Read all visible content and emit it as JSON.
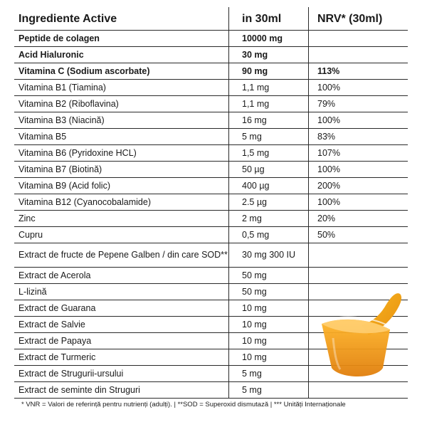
{
  "header": {
    "col_ingredient": "Ingrediente Active",
    "col_amount": "in 30ml",
    "col_nrv": "NRV* (30ml)"
  },
  "rows": [
    {
      "name": "Peptide de colagen",
      "amount": "10000 mg",
      "nrv": "",
      "bold": true
    },
    {
      "name": "Acid Hialuronic",
      "amount": "30 mg",
      "nrv": "",
      "bold": true
    },
    {
      "name": "Vitamina C (Sodium ascorbate)",
      "amount": "90 mg",
      "nrv": "113%",
      "bold": true
    },
    {
      "name": "Vitamina B1 (Tiamina)",
      "amount": "1,1 mg",
      "nrv": "100%"
    },
    {
      "name": "Vitamina B2 (Riboflavina)",
      "amount": "1,1 mg",
      "nrv": "79%"
    },
    {
      "name": "Vitamina B3 (Niacină)",
      "amount": "16 mg",
      "nrv": "100%"
    },
    {
      "name": "Vitamina B5",
      "amount": "5 mg",
      "nrv": "83%"
    },
    {
      "name": "Vitamina B6 (Pyridoxine HCL)",
      "amount": "1,5 mg",
      "nrv": "107%"
    },
    {
      "name": "Vitamina B7 (Biotină)",
      "amount": "50 µg",
      "nrv": "100%"
    },
    {
      "name": "Vitamina B9 (Acid folic)",
      "amount": "400 µg",
      "nrv": "200%"
    },
    {
      "name": "Vitamina B12 (Cyanocobalamide)",
      "amount": "2.5 µg",
      "nrv": "100%"
    },
    {
      "name": "Zinc",
      "amount": "2 mg",
      "nrv": "20%"
    },
    {
      "name": "Cupru",
      "amount": "0,5 mg",
      "nrv": "50%"
    },
    {
      "name": "Extract de fructe de Pepene Galben / din care SOD**",
      "amount": "30 mg 300 IU",
      "nrv": "",
      "tall": true
    },
    {
      "name": "Extract de Acerola",
      "amount": "50 mg",
      "nrv": ""
    },
    {
      "name": "L-lizină",
      "amount": "50 mg",
      "nrv": ""
    },
    {
      "name": "Extract de Guarana",
      "amount": "10 mg",
      "nrv": ""
    },
    {
      "name": "Extract de Salvie",
      "amount": "10 mg",
      "nrv": ""
    },
    {
      "name": "Extract de Papaya",
      "amount": "10 mg",
      "nrv": ""
    },
    {
      "name": "Extract de Turmeric",
      "amount": "10 mg",
      "nrv": ""
    },
    {
      "name": "Extract de Strugurii-ursului",
      "amount": "5 mg",
      "nrv": ""
    },
    {
      "name": "Extract de seminte din Struguri",
      "amount": "5 mg",
      "nrv": ""
    }
  ],
  "footnote": "* VNR = Valori de referință pentru nutrienți (adulți). | **SOD = Superoxid dismutază | *** Unități Internaționale",
  "colors": {
    "liquid": "#F2A316",
    "liquid_dark": "#D9770A",
    "border": "#2a2a2a"
  },
  "illustration": "liquid-cup-icon"
}
